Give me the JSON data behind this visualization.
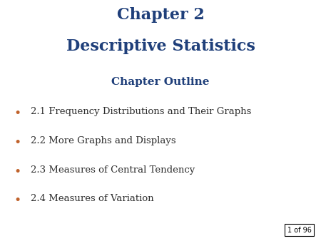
{
  "title_line1": "Chapter 2",
  "title_line2": "Descriptive Statistics",
  "subtitle": "Chapter Outline",
  "bullet_items": [
    "2.1 Frequency Distributions and Their Graphs",
    "2.2 More Graphs and Displays",
    "2.3 Measures of Central Tendency",
    "2.4 Measures of Variation"
  ],
  "title_color": "#1F3F7A",
  "subtitle_color": "#1F3F7A",
  "bullet_text_color": "#2E2E2E",
  "bullet_dot_color": "#C0622B",
  "background_color": "#FFFFFF",
  "page_label": "1 of 96",
  "page_label_color": "#000000",
  "title_fontsize": 16,
  "subtitle_fontsize": 11,
  "bullet_fontsize": 9.5
}
